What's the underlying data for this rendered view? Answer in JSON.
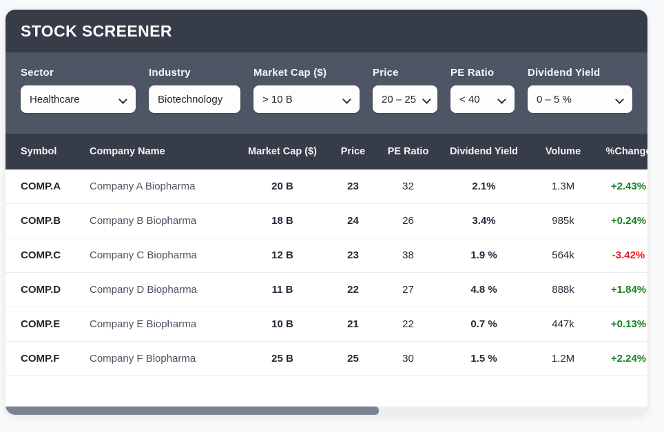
{
  "app": {
    "title": "STOCK SCREENER"
  },
  "filters": [
    {
      "id": "sector",
      "label": "Sector",
      "value": "Healthcare",
      "has_chevron": true
    },
    {
      "id": "industry",
      "label": "Industry",
      "value": "Biotechnology",
      "has_chevron": false
    },
    {
      "id": "market-cap",
      "label": "Market Cap ($)",
      "value": "> 10 B",
      "has_chevron": true
    },
    {
      "id": "price",
      "label": "Price",
      "value": "20 – 25",
      "has_chevron": true
    },
    {
      "id": "pe-ratio",
      "label": "PE Ratio",
      "value": "< 40",
      "has_chevron": true
    },
    {
      "id": "dividend-yield",
      "label": "Dividend Yield",
      "value": "0 – 5 %",
      "has_chevron": true
    }
  ],
  "table": {
    "columns": [
      "Symbol",
      "Company Name",
      "Market Cap ($)",
      "Price",
      "PE Ratio",
      "Dividend Yield",
      "Volume",
      "%Change"
    ],
    "rows": [
      {
        "symbol": "COMP.A",
        "company": "Company A Biopharma",
        "market_cap": "20 B",
        "price": "23",
        "pe_ratio": "32",
        "dividend_yield": "2.1%",
        "volume": "1.3M",
        "pct_change": "+2.43%",
        "change_direction": "up"
      },
      {
        "symbol": "COMP.B",
        "company": "Company B Biopharma",
        "market_cap": "18 B",
        "price": "24",
        "pe_ratio": "26",
        "dividend_yield": "3.4%",
        "volume": "985k",
        "pct_change": "+0.24%",
        "change_direction": "up"
      },
      {
        "symbol": "COMP.C",
        "company": "Company C Biopharma",
        "market_cap": "12 B",
        "price": "23",
        "pe_ratio": "38",
        "dividend_yield": "1.9 %",
        "volume": "564k",
        "pct_change": "-3.42%",
        "change_direction": "down"
      },
      {
        "symbol": "COMP.D",
        "company": "Company D Biopharma",
        "market_cap": "11 B",
        "price": "22",
        "pe_ratio": "27",
        "dividend_yield": "4.8 %",
        "volume": "888k",
        "pct_change": "+1.84%",
        "change_direction": "up"
      },
      {
        "symbol": "COMP.E",
        "company": "Company E Biopharma",
        "market_cap": "10 B",
        "price": "21",
        "pe_ratio": "22",
        "dividend_yield": "0.7 %",
        "volume": "447k",
        "pct_change": "+0.13%",
        "change_direction": "up"
      },
      {
        "symbol": "COMP.F",
        "company": "Company F Blopharma",
        "market_cap": "25 B",
        "price": "25",
        "pe_ratio": "30",
        "dividend_yield": "1.5 %",
        "volume": "1.2M",
        "pct_change": "+2.24%",
        "change_direction": "up"
      }
    ]
  },
  "colors": {
    "up": "#15811d",
    "down": "#ee1d27",
    "header_bg": "#363c48",
    "filter_band_bg": "#4e5565",
    "scroll_thumb": "#7b8292"
  }
}
